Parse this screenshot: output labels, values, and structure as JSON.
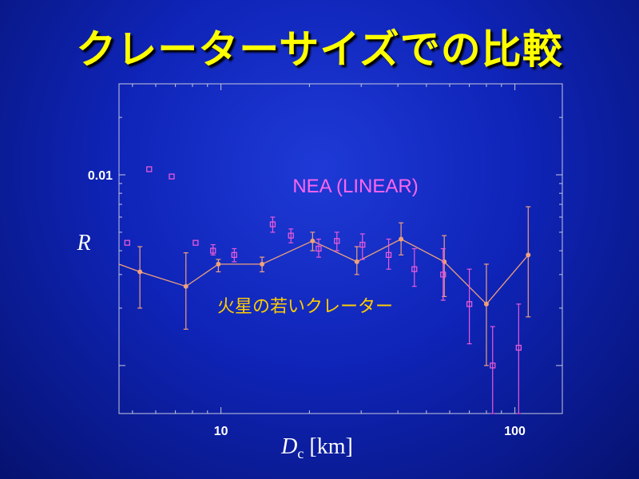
{
  "slide": {
    "title": "クレーターサイズでの比較"
  },
  "colors": {
    "background": "#0f24b8",
    "title": "#ffff00",
    "axis_text": "#ffffff",
    "nea_series": "#e85ad8",
    "mars_series": "#f0a07a",
    "mars_label": "#ffcc00",
    "nea_label": "#ff66ee"
  },
  "chart_data": {
    "type": "scatter",
    "x_scale": "log",
    "y_scale": "log",
    "xlim": [
      4.5,
      145
    ],
    "ylim": [
      0.00056,
      0.03
    ],
    "xlabel_var": "D",
    "xlabel_sub": "c",
    "xlabel_unit": " [km]",
    "ylabel": "R",
    "x_ticks": [
      {
        "value": 10,
        "label": "10"
      },
      {
        "value": 100,
        "label": "100"
      }
    ],
    "y_ticks": [
      {
        "value": 0.01,
        "label": "0.01"
      }
    ],
    "grid": false,
    "series": [
      {
        "name": "NEA (LINEAR)",
        "marker": "open-square",
        "line": false,
        "points": [
          {
            "x": 4.8,
            "y": 0.0044
          },
          {
            "x": 5.7,
            "y": 0.0107
          },
          {
            "x": 6.8,
            "y": 0.0098
          },
          {
            "x": 8.2,
            "y": 0.0044
          },
          {
            "x": 9.4,
            "y": 0.004,
            "lo": 0.0038,
            "hi": 0.0043
          },
          {
            "x": 11.1,
            "y": 0.0038,
            "lo": 0.0035,
            "hi": 0.0041
          },
          {
            "x": 15.0,
            "y": 0.0055,
            "lo": 0.005,
            "hi": 0.006
          },
          {
            "x": 17.3,
            "y": 0.0048,
            "lo": 0.0044,
            "hi": 0.0052
          },
          {
            "x": 21.5,
            "y": 0.0041,
            "lo": 0.0037,
            "hi": 0.0046
          },
          {
            "x": 24.8,
            "y": 0.0045,
            "lo": 0.004,
            "hi": 0.005
          },
          {
            "x": 30.3,
            "y": 0.0043,
            "lo": 0.0036,
            "hi": 0.0049
          },
          {
            "x": 37.2,
            "y": 0.0038,
            "lo": 0.0032,
            "hi": 0.0046
          },
          {
            "x": 45.5,
            "y": 0.0032,
            "lo": 0.0026,
            "hi": 0.0041
          },
          {
            "x": 57.0,
            "y": 0.003,
            "lo": 0.0022,
            "hi": 0.0041
          },
          {
            "x": 70.0,
            "y": 0.0021,
            "lo": 0.0013,
            "hi": 0.0032
          },
          {
            "x": 84.0,
            "y": 0.001,
            "lo": 0.00056,
            "hi": 0.0016
          },
          {
            "x": 103.0,
            "y": 0.00124,
            "lo": 0.00056,
            "hi": 0.0021
          }
        ]
      },
      {
        "name": "火星の若いクレーター",
        "marker": "dot",
        "line": true,
        "points": [
          {
            "x": 5.3,
            "y": 0.0031,
            "lo": 0.002,
            "hi": 0.0042
          },
          {
            "x": 7.6,
            "y": 0.0026,
            "lo": 0.00155,
            "hi": 0.0039
          },
          {
            "x": 9.8,
            "y": 0.0034,
            "lo": 0.0031,
            "hi": 0.0036
          },
          {
            "x": 13.8,
            "y": 0.0034,
            "lo": 0.0031,
            "hi": 0.0037
          },
          {
            "x": 20.5,
            "y": 0.0045,
            "lo": 0.004,
            "hi": 0.005
          },
          {
            "x": 29.0,
            "y": 0.0035,
            "lo": 0.003,
            "hi": 0.0042
          },
          {
            "x": 41.0,
            "y": 0.0046,
            "lo": 0.0038,
            "hi": 0.0056
          },
          {
            "x": 57.5,
            "y": 0.0035,
            "lo": 0.0023,
            "hi": 0.0048
          },
          {
            "x": 80.0,
            "y": 0.0021,
            "lo": 0.001,
            "hi": 0.0034
          },
          {
            "x": 111.0,
            "y": 0.0038,
            "lo": 0.0018,
            "hi": 0.0068
          }
        ]
      }
    ],
    "annotations": [
      {
        "text": "NEA (LINEAR)",
        "series": 0
      },
      {
        "text": "火星の若いクレーター",
        "series": 1
      }
    ]
  }
}
